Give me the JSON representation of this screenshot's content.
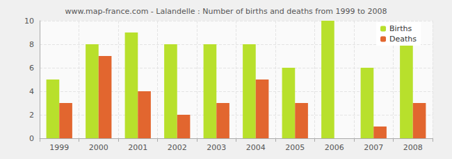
{
  "chart_data": {
    "type": "bar",
    "title": "www.map-france.com - Lalandelle : Number of births and deaths from 1999 to 2008",
    "categories": [
      "1999",
      "2000",
      "2001",
      "2002",
      "2003",
      "2004",
      "2005",
      "2006",
      "2007",
      "2008"
    ],
    "series": [
      {
        "name": "Births",
        "color": "#b8e02c",
        "values": [
          5,
          8,
          9,
          8,
          8,
          8,
          6,
          10,
          6,
          8
        ]
      },
      {
        "name": "Deaths",
        "color": "#e2662f",
        "values": [
          3,
          7,
          4,
          2,
          3,
          5,
          3,
          0,
          1,
          3
        ]
      }
    ],
    "ylim": [
      0,
      10
    ],
    "yticks": [
      0,
      2,
      4,
      6,
      8,
      10
    ],
    "grid": true,
    "legend": "top-right"
  }
}
